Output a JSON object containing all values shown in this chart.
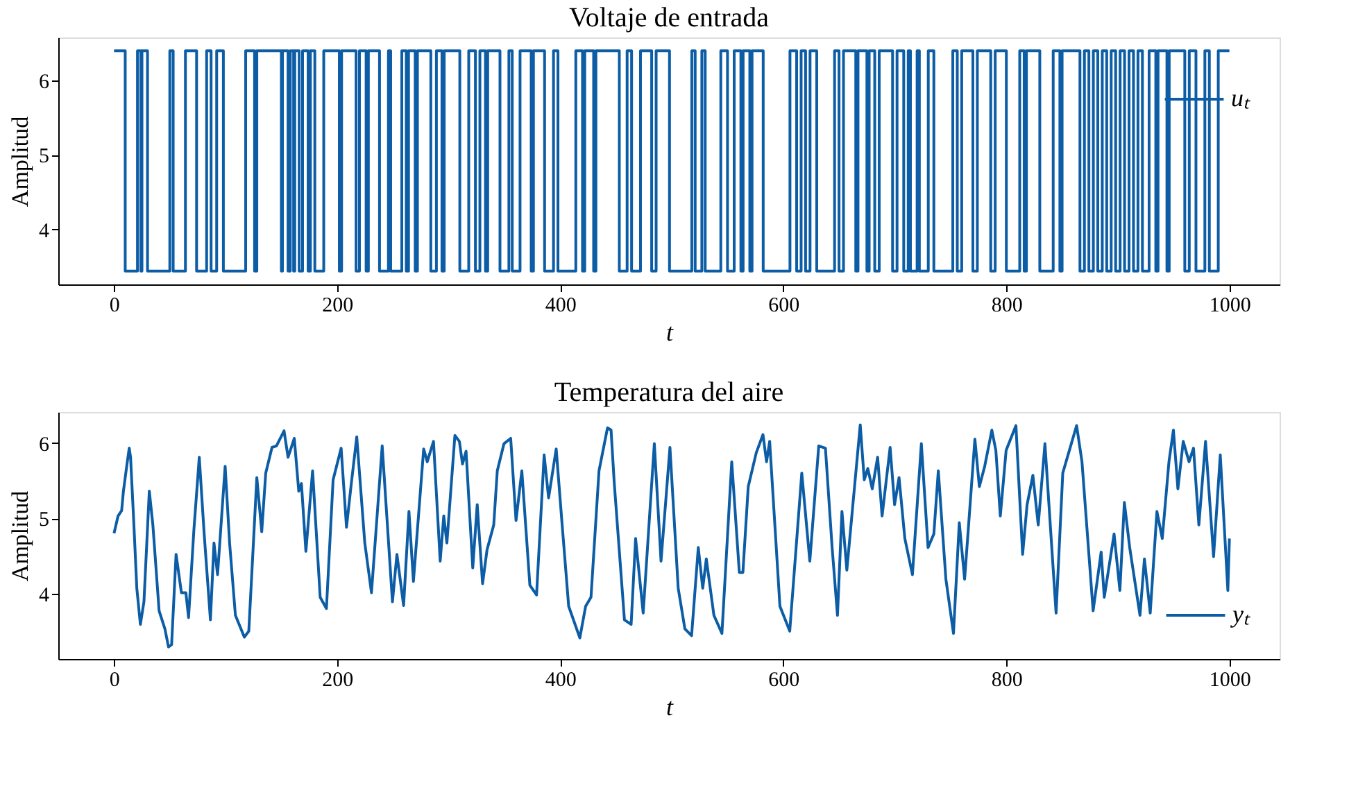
{
  "chart_data": [
    {
      "type": "step",
      "title": "Voltaje de entrada",
      "xlabel": "t",
      "ylabel": "Amplitud",
      "xlim": [
        -50,
        1045
      ],
      "xticks": [
        0,
        200,
        400,
        600,
        800,
        1000
      ],
      "ylim": [
        3.26,
        6.58
      ],
      "yticks": [
        4,
        5,
        6
      ],
      "legend": "top right",
      "grid": false,
      "x": [
        0,
        10,
        21,
        24,
        25,
        30,
        50,
        53,
        64,
        74,
        83,
        87,
        92,
        98,
        118,
        126,
        128,
        150,
        151,
        156,
        158,
        161,
        162,
        166,
        169,
        174,
        176,
        180,
        188,
        202,
        204,
        217,
        220,
        226,
        228,
        238,
        246,
        248,
        258,
        262,
        264,
        270,
        272,
        284,
        289,
        294,
        296,
        310,
        318,
        324,
        328,
        333,
        335,
        346,
        354,
        357,
        364,
        374,
        376,
        386,
        394,
        398,
        414,
        420,
        422,
        430,
        432,
        453,
        460,
        464,
        472,
        482,
        486,
        498,
        518,
        521,
        527,
        530,
        544,
        550,
        556,
        562,
        564,
        570,
        572,
        582,
        606,
        612,
        616,
        620,
        624,
        630,
        646,
        650,
        654,
        665,
        667,
        675,
        677,
        682,
        686,
        698,
        702,
        708,
        712,
        714,
        720,
        722,
        730,
        735,
        752,
        756,
        760,
        770,
        774,
        786,
        790,
        800,
        812,
        816,
        818,
        830,
        842,
        848,
        850,
        866,
        870,
        874,
        878,
        882,
        886,
        890,
        894,
        898,
        902,
        906,
        910,
        914,
        918,
        922,
        928,
        934,
        936,
        944,
        946,
        960,
        964,
        970,
        978,
        982,
        990,
        1000
      ],
      "series": [
        {
          "name": "uₜ",
          "color": "#0c5da5",
          "values": [
            6.4,
            3.44,
            6.4,
            3.44,
            6.4,
            3.44,
            6.4,
            3.44,
            6.4,
            3.44,
            6.4,
            3.44,
            6.4,
            3.44,
            6.4,
            3.44,
            6.4,
            3.44,
            6.4,
            3.44,
            6.4,
            3.44,
            6.4,
            3.44,
            6.4,
            3.44,
            6.4,
            3.44,
            6.4,
            3.44,
            6.4,
            3.44,
            6.4,
            3.44,
            6.4,
            3.44,
            6.4,
            3.44,
            6.4,
            3.44,
            6.4,
            3.44,
            6.4,
            3.44,
            6.4,
            3.44,
            6.4,
            3.44,
            6.4,
            3.44,
            6.4,
            3.44,
            6.4,
            3.44,
            6.4,
            3.44,
            6.4,
            3.44,
            6.4,
            3.44,
            6.4,
            3.44,
            6.4,
            3.44,
            6.4,
            3.44,
            6.4,
            3.44,
            6.4,
            3.44,
            6.4,
            3.44,
            6.4,
            3.44,
            6.4,
            3.44,
            6.4,
            3.44,
            6.4,
            3.44,
            6.4,
            3.44,
            6.4,
            3.44,
            6.4,
            3.44,
            6.4,
            3.44,
            6.4,
            3.44,
            6.4,
            3.44,
            6.4,
            3.44,
            6.4,
            3.44,
            6.4,
            3.44,
            6.4,
            3.44,
            6.4,
            3.44,
            6.4,
            3.44,
            6.4,
            3.44,
            6.4,
            3.44,
            6.4,
            3.44,
            6.4,
            3.44,
            6.4,
            3.44,
            6.4,
            3.44,
            6.4,
            3.44,
            6.4,
            3.44,
            6.4,
            3.44,
            6.4,
            3.44,
            6.4,
            3.44,
            6.4,
            3.44,
            6.4,
            3.44,
            6.4,
            3.44,
            6.4,
            3.44,
            6.4,
            3.44,
            6.4,
            3.44,
            6.4,
            3.44,
            6.4,
            3.44,
            6.4,
            3.44,
            6.4,
            3.44,
            6.4,
            3.44,
            6.4,
            3.44,
            6.4,
            6.4
          ]
        }
      ]
    },
    {
      "type": "line",
      "title": "Temperatura del aire",
      "xlabel": "t",
      "ylabel": "Amplitud",
      "xlim": [
        -50,
        1045
      ],
      "xticks": [
        0,
        200,
        400,
        600,
        800,
        1000
      ],
      "ylim": [
        3.13,
        6.41
      ],
      "yticks": [
        4,
        5,
        6
      ],
      "legend": "bottom right",
      "grid": false,
      "x": [
        0,
        3.6,
        6.8,
        8.4,
        11.6,
        13.6,
        14.8,
        17.6,
        20.4,
        23.6,
        26.8,
        31.6,
        34.8,
        40.4,
        45.6,
        48.8,
        51.6,
        55.6,
        60.4,
        64.4,
        66.8,
        71.6,
        76.4,
        80.8,
        86.4,
        89.6,
        92.8,
        99.6,
        103.6,
        108.8,
        116.8,
        120.8,
        128,
        132.4,
        136,
        141.6,
        145.6,
        152.4,
        156,
        161.6,
        165.6,
        168,
        172,
        178,
        184.8,
        190.4,
        196.4,
        203.6,
        208.4,
        212.4,
        217.6,
        224.8,
        230.8,
        240.4,
        249.6,
        253.6,
        259.6,
        264.4,
        268.4,
        277.6,
        280.8,
        286.4,
        292.4,
        295.6,
        298.4,
        305.6,
        309.6,
        312.4,
        315.6,
        321.6,
        325.6,
        330.4,
        334.4,
        340.4,
        343.6,
        349.6,
        355.6,
        360.4,
        365.6,
        372.8,
        378.8,
        385.6,
        389.6,
        396.4,
        401.6,
        407.6,
        417.6,
        422.8,
        427.6,
        434.8,
        442.4,
        445.6,
        448.4,
        457.6,
        463.6,
        467.6,
        474.4,
        484.4,
        490.4,
        498.4,
        505.8,
        511.8,
        517.8,
        523.8,
        527.8,
        531,
        537.8,
        545,
        553.8,
        560.6,
        563.8,
        568.6,
        575.8,
        581.8,
        585,
        587.8,
        597,
        605.8,
        616.6,
        623.8,
        631.8,
        637.8,
        643.8,
        648.6,
        652.6,
        657,
        669,
        672.6,
        675.8,
        679.8,
        684.6,
        688.6,
        695.8,
        699.8,
        703.8,
        709,
        715.8,
        723.8,
        729.8,
        735,
        739,
        745.8,
        752.6,
        757.8,
        762.6,
        771.8,
        775.8,
        780.6,
        787,
        790.6,
        794.6,
        799.8,
        808.6,
        814.6,
        818.6,
        823.8,
        828.6,
        834.6,
        844.6,
        850.6,
        863,
        867.8,
        877.8,
        885,
        887.8,
        896.6,
        901.8,
        905.8,
        910.6,
        919.8,
        923.8,
        929,
        935,
        939.8,
        945.8,
        949.8,
        953.8,
        958.6,
        963.8,
        967.8,
        972.6,
        978.6,
        985.8,
        991.8,
        998.6,
        1000
      ],
      "series": [
        {
          "name": "yₜ",
          "color": "#0c5da5",
          "values": [
            4.8,
            5.03,
            5.1,
            5.36,
            5.72,
            5.93,
            5.81,
            4.97,
            4.07,
            3.59,
            3.89,
            5.36,
            4.91,
            3.77,
            3.53,
            3.29,
            3.32,
            4.52,
            4.01,
            4.01,
            3.68,
            4.85,
            5.81,
            4.79,
            3.65,
            4.67,
            4.25,
            5.69,
            4.67,
            3.71,
            3.42,
            3.5,
            5.54,
            4.82,
            5.6,
            5.94,
            5.96,
            6.16,
            5.81,
            6.06,
            5.36,
            5.46,
            4.56,
            5.63,
            3.95,
            3.8,
            5.51,
            5.93,
            4.88,
            5.42,
            6.08,
            4.67,
            4.01,
            5.96,
            3.89,
            4.52,
            3.84,
            5.09,
            4.16,
            5.92,
            5.75,
            6.02,
            4.43,
            5.03,
            4.67,
            6.1,
            6.02,
            5.72,
            5.89,
            4.34,
            5.18,
            4.13,
            4.58,
            4.91,
            5.63,
            5.99,
            6.06,
            4.97,
            5.63,
            4.11,
            3.98,
            5.84,
            5.27,
            5.92,
            4.94,
            3.83,
            3.41,
            3.83,
            3.95,
            5.63,
            6.2,
            6.17,
            5.48,
            3.65,
            3.59,
            4.73,
            3.74,
            5.99,
            4.43,
            5.94,
            4.07,
            3.53,
            3.44,
            4.61,
            4.07,
            4.46,
            3.71,
            3.47,
            5.75,
            4.28,
            4.28,
            5.42,
            5.87,
            6.11,
            5.75,
            6.02,
            3.83,
            3.5,
            5.6,
            4.43,
            5.96,
            5.93,
            4.61,
            3.71,
            5.09,
            4.31,
            6.24,
            5.51,
            5.66,
            5.39,
            5.81,
            5.03,
            5.94,
            5.18,
            5.54,
            4.73,
            4.25,
            5.99,
            4.61,
            4.79,
            5.63,
            4.19,
            3.47,
            4.94,
            4.19,
            6.05,
            5.42,
            5.69,
            6.17,
            5.9,
            5.03,
            5.9,
            6.23,
            4.52,
            5.18,
            5.57,
            4.91,
            5.99,
            3.74,
            5.6,
            6.23,
            5.75,
            3.77,
            4.55,
            3.95,
            4.79,
            4.04,
            5.21,
            4.61,
            3.71,
            4.46,
            3.74,
            5.09,
            4.73,
            5.75,
            6.17,
            5.39,
            6.02,
            5.75,
            5.93,
            4.91,
            6.02,
            4.49,
            5.84,
            4.04,
            4.73
          ]
        }
      ]
    }
  ]
}
